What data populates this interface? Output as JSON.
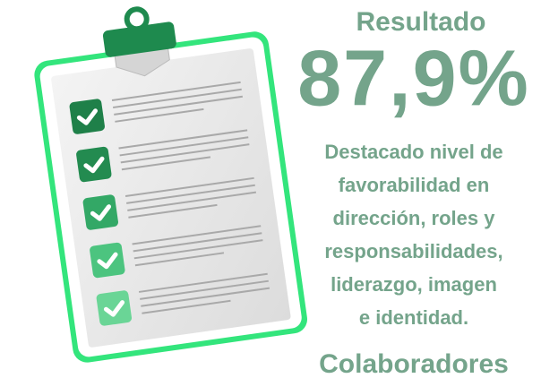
{
  "heading": "Resultado",
  "result": "87,9%",
  "description": [
    "Destacado nivel de",
    "favorabilidad en",
    "dirección, roles y",
    "responsabilidades,",
    "liderazgo, imagen",
    "e identidad."
  ],
  "footer": "Colaboradores"
}
